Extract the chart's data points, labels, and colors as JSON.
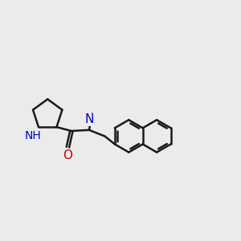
{
  "bg_color": "#ebebeb",
  "bond_color": "#1a1a1a",
  "N_color": "#0000cc",
  "O_color": "#cc0000",
  "bond_width": 1.8,
  "font_size": 9,
  "fig_size": [
    3.0,
    3.0
  ],
  "dpi": 100,
  "xlim": [
    0,
    12
  ],
  "ylim": [
    0,
    12
  ]
}
